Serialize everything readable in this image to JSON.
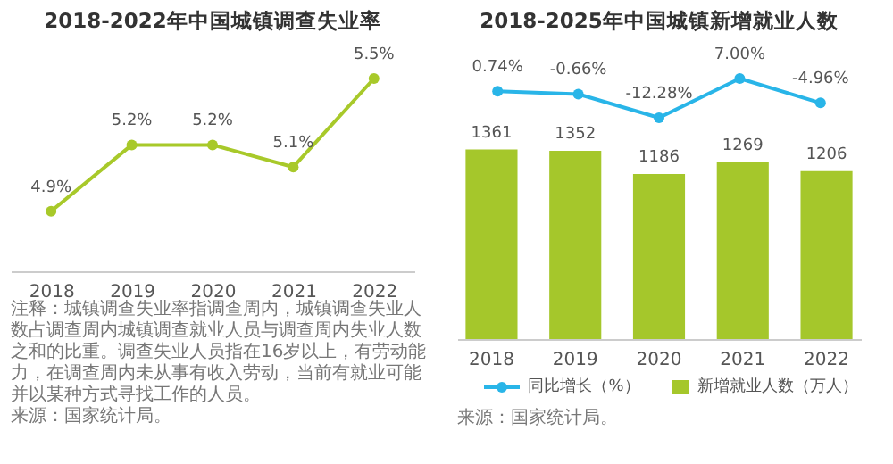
{
  "chart_data": [
    {
      "type": "line",
      "title": "2018-2022年中国城镇调查失业率",
      "categories": [
        "2018",
        "2019",
        "2020",
        "2021",
        "2022"
      ],
      "series": [
        {
          "color": "#a8c92a",
          "values": [
            4.9,
            5.2,
            5.2,
            5.1,
            5.5
          ],
          "value_labels": [
            "4.9%",
            "5.2%",
            "5.2%",
            "5.1%",
            "5.5%"
          ]
        }
      ],
      "tick_labels": "x",
      "grid": false,
      "legend": false,
      "marker": "circle",
      "line_style": "solid",
      "annotations": [
        "注释：城镇调查失业率指调查周内，城镇调查失业人数占调查周内城镇调查就业人员与调查周内失业人数之和的比重。调查失业人员指在16岁以上，有劳动能力，在调查周内未从事有收入劳动，当前有就业可能并以某种方式寻找工作的人员。",
        "来源：国家统计局。"
      ]
    },
    {
      "type": "line",
      "title": "2018-2025年中国城镇新增就业人数",
      "categories": [
        "2018",
        "2019",
        "2020",
        "2021",
        "2022"
      ],
      "series": [
        {
          "name": "同比增长（%）",
          "color": "#29b5e8",
          "values": [
            0.74,
            -0.66,
            -12.28,
            7.0,
            -4.96
          ],
          "value_labels": [
            "0.74%",
            "-0.66%",
            "-12.28%",
            "7.00%",
            "-4.96%"
          ]
        }
      ],
      "tick_labels": false,
      "grid": false,
      "legend": "bottom",
      "marker": "circle",
      "line_style": "solid"
    },
    {
      "type": "bar",
      "categories": [
        "2018",
        "2019",
        "2020",
        "2021",
        "2022"
      ],
      "series": [
        {
          "name": "新增就业人数（万人）",
          "color": "#a5c72b",
          "values": [
            1361,
            1352,
            1186,
            1269,
            1206
          ],
          "value_labels": [
            "1361",
            "1352",
            "1186",
            "1269",
            "1206"
          ]
        }
      ],
      "tick_labels": "x",
      "grid": false,
      "legend": "bottom",
      "annotations": [
        "来源：国家统计局。"
      ]
    }
  ]
}
